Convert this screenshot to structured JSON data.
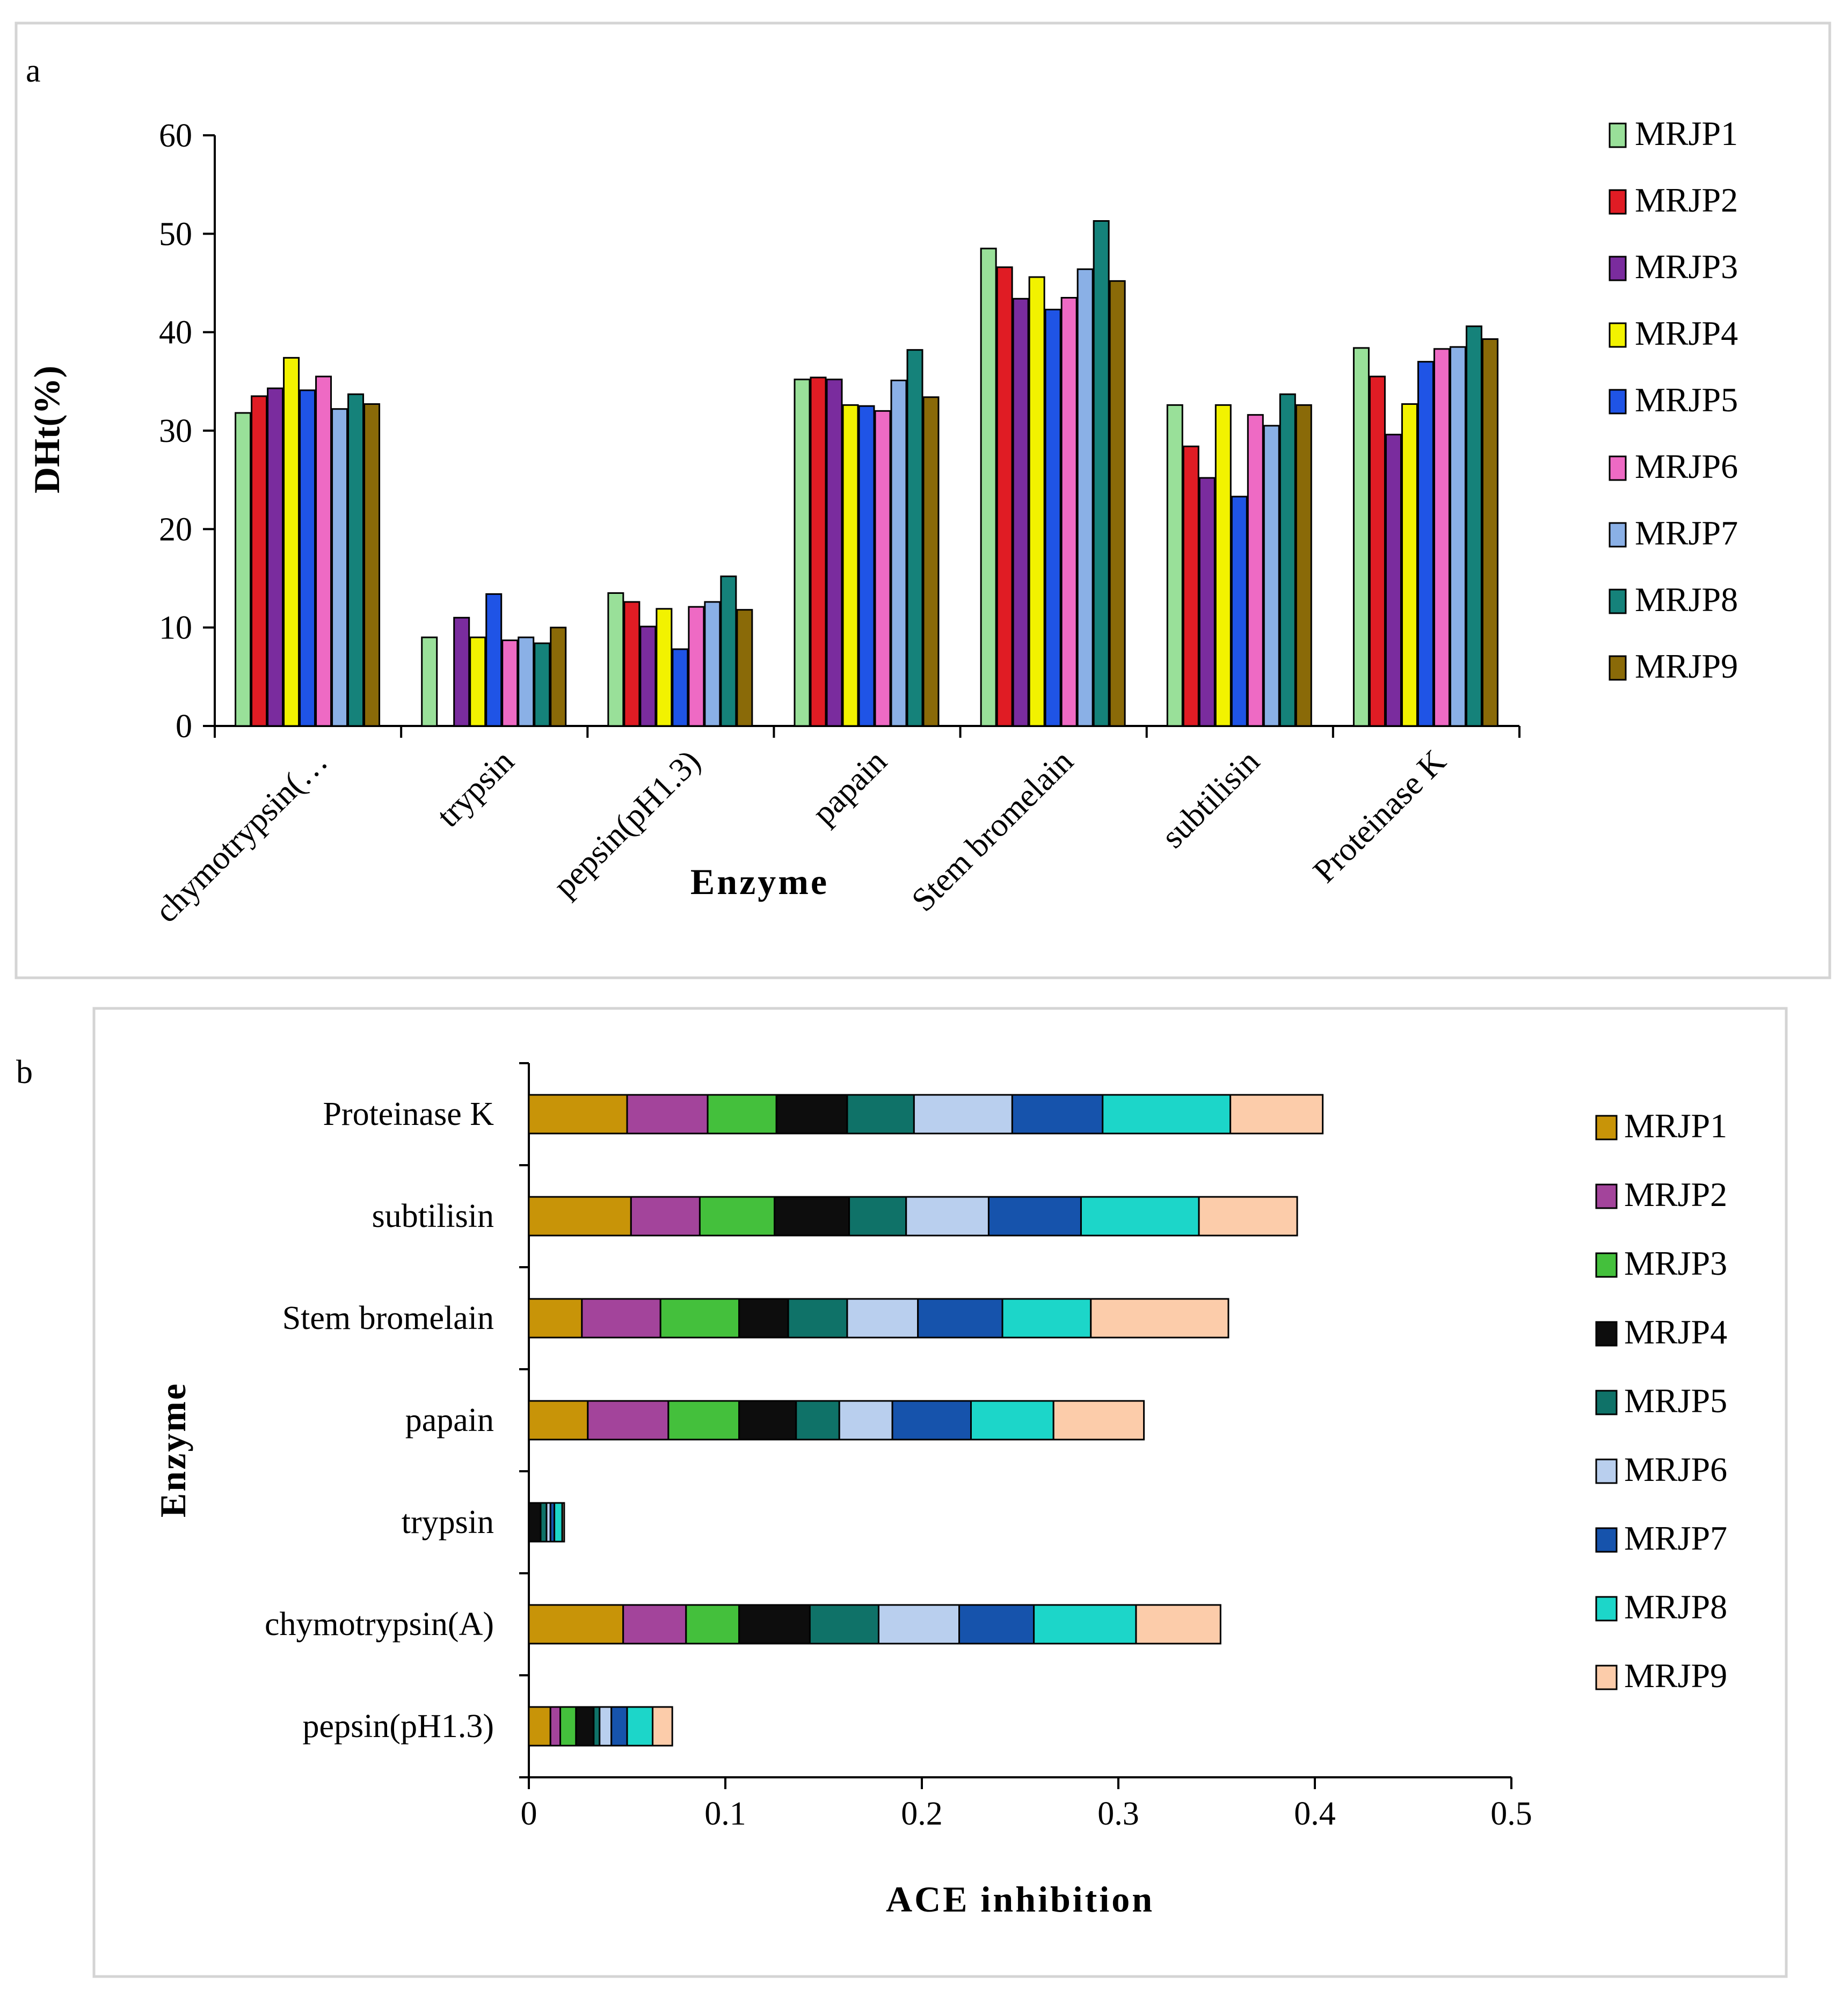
{
  "colors": {
    "a": [
      "#99e099",
      "#e01c24",
      "#7a2c9e",
      "#f2f200",
      "#1f54e6",
      "#ee6ac4",
      "#8ab0e6",
      "#15827a",
      "#8a6a08"
    ],
    "b": [
      "#c89408",
      "#a3449b",
      "#44c03c",
      "#0d0d0d",
      "#0f7268",
      "#b9cfee",
      "#1653ac",
      "#1cd6c9",
      "#fcccaa"
    ]
  },
  "chart_data": [
    {
      "panel": "a",
      "type": "bar",
      "xlabel": "Enzyme",
      "ylabel": "DHt(%)",
      "ylim": [
        0,
        60
      ],
      "yticks": [
        "0",
        "10",
        "20",
        "30",
        "40",
        "50",
        "60"
      ],
      "grid": false,
      "legend_position": "right",
      "categories": [
        "chymotrypsin(…",
        "trypsin",
        "pepsin(pH1.3)",
        "papain",
        "Stem bromelain",
        "subtilisin",
        "Proteinase K"
      ],
      "series": [
        {
          "name": "MRJP1",
          "values": [
            31.8,
            9.0,
            13.5,
            35.2,
            48.5,
            32.6,
            38.4
          ]
        },
        {
          "name": "MRJP2",
          "values": [
            33.5,
            0,
            12.6,
            35.4,
            46.6,
            28.4,
            35.5
          ]
        },
        {
          "name": "MRJP3",
          "values": [
            34.3,
            11.0,
            10.1,
            35.2,
            43.4,
            25.2,
            29.6
          ]
        },
        {
          "name": "MRJP4",
          "values": [
            37.4,
            9.0,
            11.9,
            32.6,
            45.6,
            32.6,
            32.7
          ]
        },
        {
          "name": "MRJP5",
          "values": [
            34.1,
            13.4,
            7.8,
            32.5,
            42.3,
            23.3,
            37.0
          ]
        },
        {
          "name": "MRJP6",
          "values": [
            35.5,
            8.7,
            12.1,
            32.0,
            43.5,
            31.6,
            38.3
          ]
        },
        {
          "name": "MRJP7",
          "values": [
            32.2,
            9.0,
            12.6,
            35.1,
            46.4,
            30.5,
            38.5
          ]
        },
        {
          "name": "MRJP8",
          "values": [
            33.7,
            8.4,
            15.2,
            38.2,
            51.3,
            33.7,
            40.6
          ]
        },
        {
          "name": "MRJP9",
          "values": [
            32.7,
            10.0,
            11.8,
            33.4,
            45.2,
            32.6,
            39.3
          ]
        }
      ]
    },
    {
      "panel": "b",
      "type": "bar",
      "orientation": "horizontal",
      "stacked": true,
      "xlabel": "ACE inhibition",
      "ylabel": "Enzyme",
      "xlim": [
        0,
        0.5
      ],
      "xticks": [
        "0",
        "0.1",
        "0.2",
        "0.3",
        "0.4",
        "0.5"
      ],
      "grid": false,
      "legend_position": "right",
      "categories": [
        "Proteinase K",
        "subtilisin",
        "Stem bromelain",
        "papain",
        "trypsin",
        "chymotrypsin(A)",
        "pepsin(pH1.3)"
      ],
      "series": [
        {
          "name": "MRJP1",
          "values": [
            0.05,
            0.052,
            0.027,
            0.03,
            0.0,
            0.048,
            0.011
          ]
        },
        {
          "name": "MRJP2",
          "values": [
            0.041,
            0.035,
            0.04,
            0.041,
            0.0,
            0.032,
            0.005
          ]
        },
        {
          "name": "MRJP3",
          "values": [
            0.035,
            0.038,
            0.04,
            0.036,
            0.0,
            0.027,
            0.008
          ]
        },
        {
          "name": "MRJP4",
          "values": [
            0.036,
            0.038,
            0.025,
            0.029,
            0.006,
            0.036,
            0.009
          ]
        },
        {
          "name": "MRJP5",
          "values": [
            0.034,
            0.029,
            0.03,
            0.022,
            0.003,
            0.035,
            0.003
          ]
        },
        {
          "name": "MRJP6",
          "values": [
            0.05,
            0.042,
            0.036,
            0.027,
            0.002,
            0.041,
            0.006
          ]
        },
        {
          "name": "MRJP7",
          "values": [
            0.046,
            0.047,
            0.043,
            0.04,
            0.002,
            0.038,
            0.008
          ]
        },
        {
          "name": "MRJP8",
          "values": [
            0.065,
            0.06,
            0.045,
            0.042,
            0.004,
            0.052,
            0.013
          ]
        },
        {
          "name": "MRJP9",
          "values": [
            0.047,
            0.05,
            0.07,
            0.046,
            0.001,
            0.043,
            0.01
          ]
        }
      ]
    }
  ],
  "panels": {
    "a": {
      "label": "a"
    },
    "b": {
      "label": "b"
    }
  }
}
